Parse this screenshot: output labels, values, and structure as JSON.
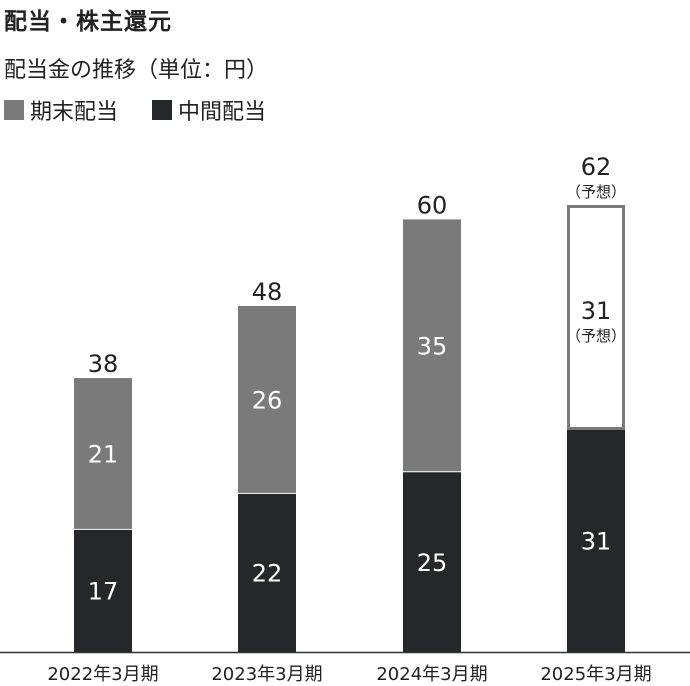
{
  "title": "配当・株主還元",
  "subtitle": "配当金の推移（単位：円）",
  "colors": {
    "final": "#7a7a7a",
    "interim": "#25272b",
    "forecast_fill": "#ffffff",
    "forecast_border": "#7a7a7a",
    "axis": "#333333"
  },
  "chart_data": {
    "type": "bar",
    "stacked": true,
    "categories": [
      "2022年3月期",
      "2023年3月期",
      "2024年3月期",
      "2025年3月期"
    ],
    "series": [
      {
        "name": "中間配当",
        "values": [
          17,
          22,
          25,
          31
        ]
      },
      {
        "name": "期末配当",
        "values": [
          21,
          26,
          35,
          31
        ]
      }
    ],
    "totals": [
      38,
      48,
      60,
      62
    ],
    "forecast_note": "（予想）",
    "forecast_category_index": 3,
    "legend": [
      "期末配当",
      "中間配当"
    ],
    "legend_position": "top-left",
    "ylim": [
      0,
      62
    ],
    "grid": false
  }
}
